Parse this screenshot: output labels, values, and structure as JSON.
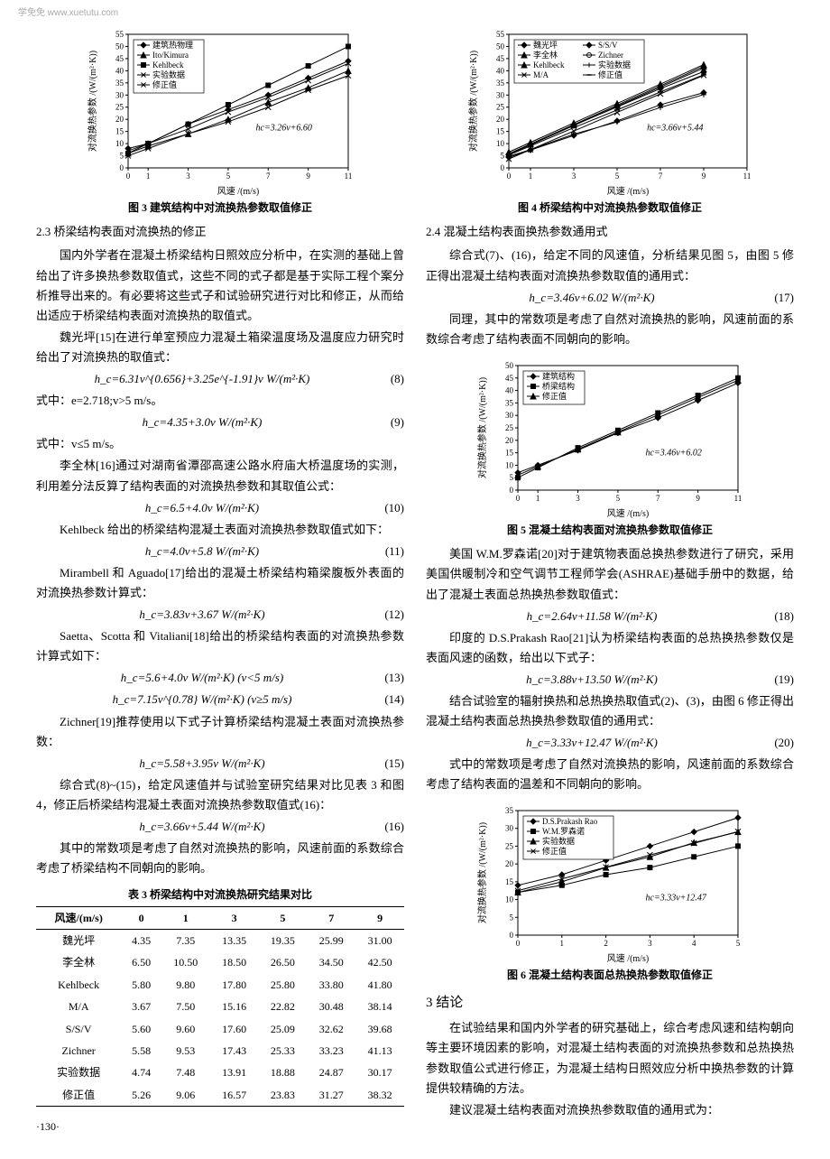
{
  "watermark": "学免免  www.xuetutu.com",
  "left": {
    "fig3": {
      "type": "line",
      "title": "图 3  建筑结构中对流换热参数取值修正",
      "xlabel": "风速 /(m/s)",
      "ylabel": "对流换热参数 /(W/(m²·K))",
      "xlim": [
        0,
        11
      ],
      "ylim": [
        0,
        55
      ],
      "xticks": [
        0,
        1,
        3,
        5,
        7,
        9,
        11
      ],
      "yticks": [
        0,
        5,
        10,
        15,
        20,
        25,
        30,
        35,
        40,
        45,
        50,
        55
      ],
      "background_color": "#ffffff",
      "axis_color": "#000000",
      "annotation": "hc=3.26v+6.60",
      "series": [
        {
          "name": "建筑热物理",
          "marker": "diamond",
          "color": "#000000",
          "x": [
            0,
            1,
            3,
            5,
            7,
            9,
            11
          ],
          "y": [
            8,
            10,
            18,
            24,
            30,
            37,
            44
          ]
        },
        {
          "name": "Ito/Kimura",
          "marker": "triangle",
          "color": "#000000",
          "x": [
            0,
            1,
            3,
            5,
            7,
            9,
            11
          ],
          "y": [
            6,
            9,
            14,
            20,
            27,
            33,
            40
          ]
        },
        {
          "name": "Kehlbeck",
          "marker": "square",
          "color": "#000000",
          "x": [
            0,
            1,
            3,
            5,
            7,
            9,
            11
          ],
          "y": [
            6,
            10,
            18,
            26,
            34,
            42,
            50
          ]
        },
        {
          "name": "实验数据",
          "marker": "cross",
          "color": "#000000",
          "x": [
            0,
            1,
            3,
            5,
            7,
            9,
            11
          ],
          "y": [
            5,
            8,
            14,
            19,
            25,
            32,
            38
          ]
        },
        {
          "name": "修正值",
          "marker": "x",
          "color": "#000000",
          "x": [
            0,
            1,
            3,
            5,
            7,
            9,
            11
          ],
          "y": [
            7,
            10,
            16,
            23,
            29,
            36,
            43
          ]
        }
      ]
    },
    "sec23_title": "2.3  桥梁结构表面对流换热的修正",
    "p1": "国内外学者在混凝土桥梁结构日照效应分析中，在实测的基础上曾给出了许多换热参数取值式，这些不同的式子都是基于实际工程个案分析推导出来的。有必要将这些式子和试验研究进行对比和修正，从而给出适应于桥梁结构表面对流换热的取值式。",
    "p2": "魏光坪[15]在进行单室预应力混凝土箱梁温度场及温度应力研究时给出了对流换热的取值式：",
    "eq8": "h_c=6.31v^{0.656}+3.25e^{-1.91}v  W/(m²·K)",
    "eq8_num": "(8)",
    "note8": "式中：e=2.718;v>5 m/s。",
    "eq9": "h_c=4.35+3.0v  W/(m²·K)",
    "eq9_num": "(9)",
    "note9": "式中：v≤5 m/s。",
    "p3": "李全林[16]通过对湖南省潭邵高速公路水府庙大桥温度场的实测，利用差分法反算了结构表面的对流换热参数和其取值公式：",
    "eq10": "h_c=6.5+4.0v  W/(m²·K)",
    "eq10_num": "(10)",
    "p4": "Kehlbeck 给出的桥梁结构混凝土表面对流换热参数取值式如下：",
    "eq11": "h_c=4.0v+5.8  W/(m²·K)",
    "eq11_num": "(11)",
    "p5": "Mirambell 和 Aguado[17]给出的混凝土桥梁结构箱梁腹板外表面的对流换热参数计算式：",
    "eq12": "h_c=3.83v+3.67  W/(m²·K)",
    "eq12_num": "(12)",
    "p6": "Saetta、Scotta 和 Vitaliani[18]给出的桥梁结构表面的对流换热参数计算式如下：",
    "eq13": "h_c=5.6+4.0v  W/(m²·K)   (v<5 m/s)",
    "eq13_num": "(13)",
    "eq14": "h_c=7.15v^{0.78}  W/(m²·K)   (v≥5 m/s)",
    "eq14_num": "(14)",
    "p7": "Zichner[19]推荐使用以下式子计算桥梁结构混凝土表面对流换热参数：",
    "eq15": "h_c=5.58+3.95v  W/(m²·K)",
    "eq15_num": "(15)",
    "p8": "综合式(8)~(15)，给定风速值并与试验室研究结果对比见表 3 和图 4，修正后桥梁结构混凝土表面对流换热参数取值式(16)：",
    "eq16": "h_c=3.66v+5.44  W/(m²·K)",
    "eq16_num": "(16)",
    "p9": "其中的常数项是考虑了自然对流换热的影响，风速前面的系数综合考虑了桥梁结构不同朝向的影响。",
    "table3": {
      "caption": "表 3  桥梁结构中对流换热研究结果对比",
      "columns": [
        "风速/(m/s)",
        "0",
        "1",
        "3",
        "5",
        "7",
        "9"
      ],
      "rows": [
        [
          "魏光坪",
          "4.35",
          "7.35",
          "13.35",
          "19.35",
          "25.99",
          "31.00"
        ],
        [
          "李全林",
          "6.50",
          "10.50",
          "18.50",
          "26.50",
          "34.50",
          "42.50"
        ],
        [
          "Kehlbeck",
          "5.80",
          "9.80",
          "17.80",
          "25.80",
          "33.80",
          "41.80"
        ],
        [
          "M/A",
          "3.67",
          "7.50",
          "15.16",
          "22.82",
          "30.48",
          "38.14"
        ],
        [
          "S/S/V",
          "5.60",
          "9.60",
          "17.60",
          "25.09",
          "32.62",
          "39.68"
        ],
        [
          "Zichner",
          "5.58",
          "9.53",
          "17.43",
          "25.33",
          "33.23",
          "41.13"
        ],
        [
          "实验数据",
          "4.74",
          "7.48",
          "13.91",
          "18.88",
          "24.87",
          "30.17"
        ],
        [
          "修正值",
          "5.26",
          "9.06",
          "16.57",
          "23.83",
          "31.27",
          "38.32"
        ]
      ]
    },
    "page_num": "·130·"
  },
  "right": {
    "fig4": {
      "type": "line",
      "title": "图 4  桥梁结构中对流换热参数取值修正",
      "xlabel": "风速 /(m/s)",
      "ylabel": "对流换热参数 /(W/(m²·K))",
      "xlim": [
        0,
        11
      ],
      "ylim": [
        0,
        55
      ],
      "xticks": [
        0,
        1,
        3,
        5,
        7,
        9,
        11
      ],
      "yticks": [
        0,
        5,
        10,
        15,
        20,
        25,
        30,
        35,
        40,
        45,
        50,
        55
      ],
      "background_color": "#ffffff",
      "axis_color": "#000000",
      "annotation": "hc=3.66v+5.44",
      "series": [
        {
          "name": "魏光坪",
          "marker": "diamond",
          "x": [
            0,
            1,
            3,
            5,
            7,
            9
          ],
          "y": [
            4.35,
            7.35,
            13.35,
            19.35,
            25.99,
            31.0
          ]
        },
        {
          "name": "李全林",
          "marker": "triangle",
          "x": [
            0,
            1,
            3,
            5,
            7,
            9
          ],
          "y": [
            6.5,
            10.5,
            18.5,
            26.5,
            34.5,
            42.5
          ]
        },
        {
          "name": "Kehlbeck",
          "marker": "triangle",
          "x": [
            0,
            1,
            3,
            5,
            7,
            9
          ],
          "y": [
            5.8,
            9.8,
            17.8,
            25.8,
            33.8,
            41.8
          ]
        },
        {
          "name": "M/A",
          "marker": "x",
          "x": [
            0,
            1,
            3,
            5,
            7,
            9
          ],
          "y": [
            3.67,
            7.5,
            15.16,
            22.82,
            30.48,
            38.14
          ]
        },
        {
          "name": "S/S/V",
          "marker": "diamond",
          "x": [
            0,
            1,
            3,
            5,
            7,
            9
          ],
          "y": [
            5.6,
            9.6,
            17.6,
            25.09,
            32.62,
            39.68
          ]
        },
        {
          "name": "Zichner",
          "marker": "circle",
          "x": [
            0,
            1,
            3,
            5,
            7,
            9
          ],
          "y": [
            5.58,
            9.53,
            17.43,
            25.33,
            33.23,
            41.13
          ]
        },
        {
          "name": "实验数据",
          "marker": "plus",
          "x": [
            0,
            1,
            3,
            5,
            7,
            9
          ],
          "y": [
            4.74,
            7.48,
            13.91,
            18.88,
            24.87,
            30.17
          ]
        },
        {
          "name": "修正值",
          "marker": "minus",
          "x": [
            0,
            1,
            3,
            5,
            7,
            9
          ],
          "y": [
            5.26,
            9.06,
            16.57,
            23.83,
            31.27,
            38.32
          ]
        }
      ]
    },
    "sec24_title": "2.4  混凝土结构表面换热参数通用式",
    "p1": "综合式(7)、(16)，给定不同的风速值，分析结果见图 5，由图 5 修正得出混凝土结构表面对流换热参数取值的通用式：",
    "eq17": "h_c=3.46v+6.02  W/(m²·K)",
    "eq17_num": "(17)",
    "p2": "同理，其中的常数项是考虑了自然对流换热的影响，风速前面的系数综合考虑了结构表面不同朝向的影响。",
    "fig5": {
      "type": "line",
      "title": "图 5  混凝土结构表面对流换热参数取值修正",
      "xlabel": "风速 /(m/s)",
      "ylabel": "对流换热参数 /(W/(m²·K))",
      "xlim": [
        0,
        11
      ],
      "ylim": [
        0,
        50
      ],
      "xticks": [
        0,
        1,
        3,
        5,
        7,
        9,
        11
      ],
      "yticks": [
        0,
        5,
        10,
        15,
        20,
        25,
        30,
        35,
        40,
        45,
        50
      ],
      "background_color": "#ffffff",
      "axis_color": "#000000",
      "annotation": "hc=3.46v+6.02",
      "series": [
        {
          "name": "建筑结构",
          "marker": "diamond",
          "x": [
            0,
            1,
            3,
            5,
            7,
            9,
            11
          ],
          "y": [
            7,
            10,
            16,
            23,
            29,
            36,
            43
          ]
        },
        {
          "name": "桥梁结构",
          "marker": "square",
          "x": [
            0,
            1,
            3,
            5,
            7,
            9,
            11
          ],
          "y": [
            5,
            9,
            17,
            24,
            31,
            38,
            45
          ]
        },
        {
          "name": "修正值",
          "marker": "triangle",
          "x": [
            0,
            1,
            3,
            5,
            7,
            9,
            11
          ],
          "y": [
            6,
            9.5,
            16.4,
            23.3,
            30.2,
            37.2,
            44.1
          ]
        }
      ]
    },
    "p3": "美国 W.M.罗森诺[20]对于建筑物表面总换热参数进行了研究，采用美国供暖制冷和空气调节工程师学会(ASHRAE)基础手册中的数据，给出了混凝土表面总热换热参数取值式：",
    "eq18": "h_c=2.64v+11.58  W/(m²·K)",
    "eq18_num": "(18)",
    "p4": "印度的 D.S.Prakash Rao[21]认为桥梁结构表面的总热换热参数仅是表面风速的函数，给出以下式子：",
    "eq19": "h_c=3.88v+13.50  W/(m²·K)",
    "eq19_num": "(19)",
    "p5": "结合试验室的辐射换热和总热换热取值式(2)、(3)，由图 6 修正得出混凝土结构表面总热换热参数取值的通用式：",
    "eq20": "h_c=3.33v+12.47  W/(m²·K)",
    "eq20_num": "(20)",
    "p6": "式中的常数项是考虑了自然对流换热的影响，风速前面的系数综合考虑了结构表面的温差和不同朝向的影响。",
    "fig6": {
      "type": "line",
      "title": "图 6  混凝土结构表面总热换热参数取值修正",
      "xlabel": "风速 /(m/s)",
      "ylabel": "对流换热参数 /(W/(m²·K))",
      "xlim": [
        0,
        5
      ],
      "ylim": [
        0,
        35
      ],
      "xticks": [
        0,
        1,
        2,
        3,
        4,
        5
      ],
      "yticks": [
        0,
        5,
        10,
        15,
        20,
        25,
        30,
        35
      ],
      "background_color": "#ffffff",
      "axis_color": "#000000",
      "annotation": "hc=3.33v+12.47",
      "series": [
        {
          "name": "D.S.Prakash Rao",
          "marker": "diamond",
          "x": [
            0,
            1,
            2,
            3,
            4,
            5
          ],
          "y": [
            14,
            17,
            21,
            25,
            29,
            33
          ]
        },
        {
          "name": "W.M.罗森诺",
          "marker": "square",
          "x": [
            0,
            1,
            2,
            3,
            4,
            5
          ],
          "y": [
            12,
            14,
            17,
            19,
            22,
            25
          ]
        },
        {
          "name": "实验数据",
          "marker": "triangle",
          "x": [
            0,
            1,
            2,
            3,
            4,
            5
          ],
          "y": [
            12,
            15,
            19,
            22,
            26,
            29
          ]
        },
        {
          "name": "修正值",
          "marker": "x",
          "x": [
            0,
            1,
            2,
            3,
            4,
            5
          ],
          "y": [
            12.5,
            15.8,
            19.1,
            22.5,
            25.8,
            29.1
          ]
        }
      ]
    },
    "sec3_title": "3  结论",
    "p7": "在试验结果和国内外学者的研究基础上，综合考虑风速和结构朝向等主要环境因素的影响，对混凝土结构表面的对流换热参数和总热换热参数取值公式进行修正，为混凝土结构日照效应分析中换热参数的计算提供较精确的方法。",
    "p8": "建议混凝土结构表面对流换热参数取值的通用式为："
  }
}
